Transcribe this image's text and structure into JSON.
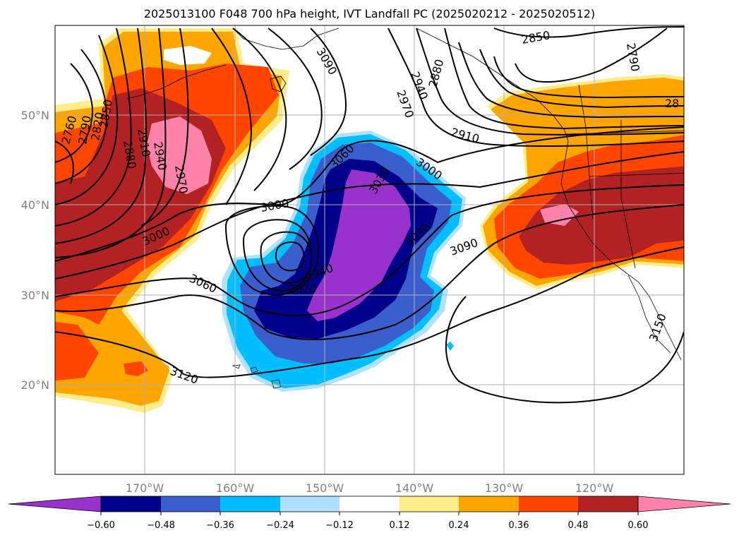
{
  "title": "2025013100 F048 700 hPa height, IVT Landfall PC (2025020212 - 2025020512)",
  "colors": {
    "neg_060": "#9932cc",
    "neg_048": "#00008b",
    "neg_036": "#3a5fcd",
    "neg_024": "#00bfff",
    "neg_012": "#b0e2ff",
    "zero": "#ffffff",
    "pos_012": "#ffec8b",
    "pos_024": "#ffa500",
    "pos_036": "#ff4500",
    "pos_048": "#b22222",
    "pos_060": "#ff82ab"
  },
  "map": {
    "lon_labels": [
      "170°W",
      "160°W",
      "150°W",
      "140°W",
      "130°W",
      "120°W"
    ],
    "lat_labels": [
      "50°N",
      "40°N",
      "30°N",
      "20°N"
    ]
  },
  "contour_labels": [
    "2760",
    "2790",
    "2820",
    "2850",
    "2880",
    "2910",
    "2940",
    "2970",
    "3000",
    "3060",
    "3030",
    "2940",
    "2970",
    "3000",
    "3060",
    "3120",
    "3090",
    "2850",
    "2880",
    "2940",
    "2970",
    "2910",
    "3000",
    "3030",
    "3090",
    "2790",
    "3150",
    "28"
  ],
  "colorbar": {
    "tick_labels": [
      "−0.60",
      "−0.48",
      "−0.36",
      "−0.24",
      "−0.12",
      "0.12",
      "0.24",
      "0.36",
      "0.48",
      "0.60"
    ]
  }
}
